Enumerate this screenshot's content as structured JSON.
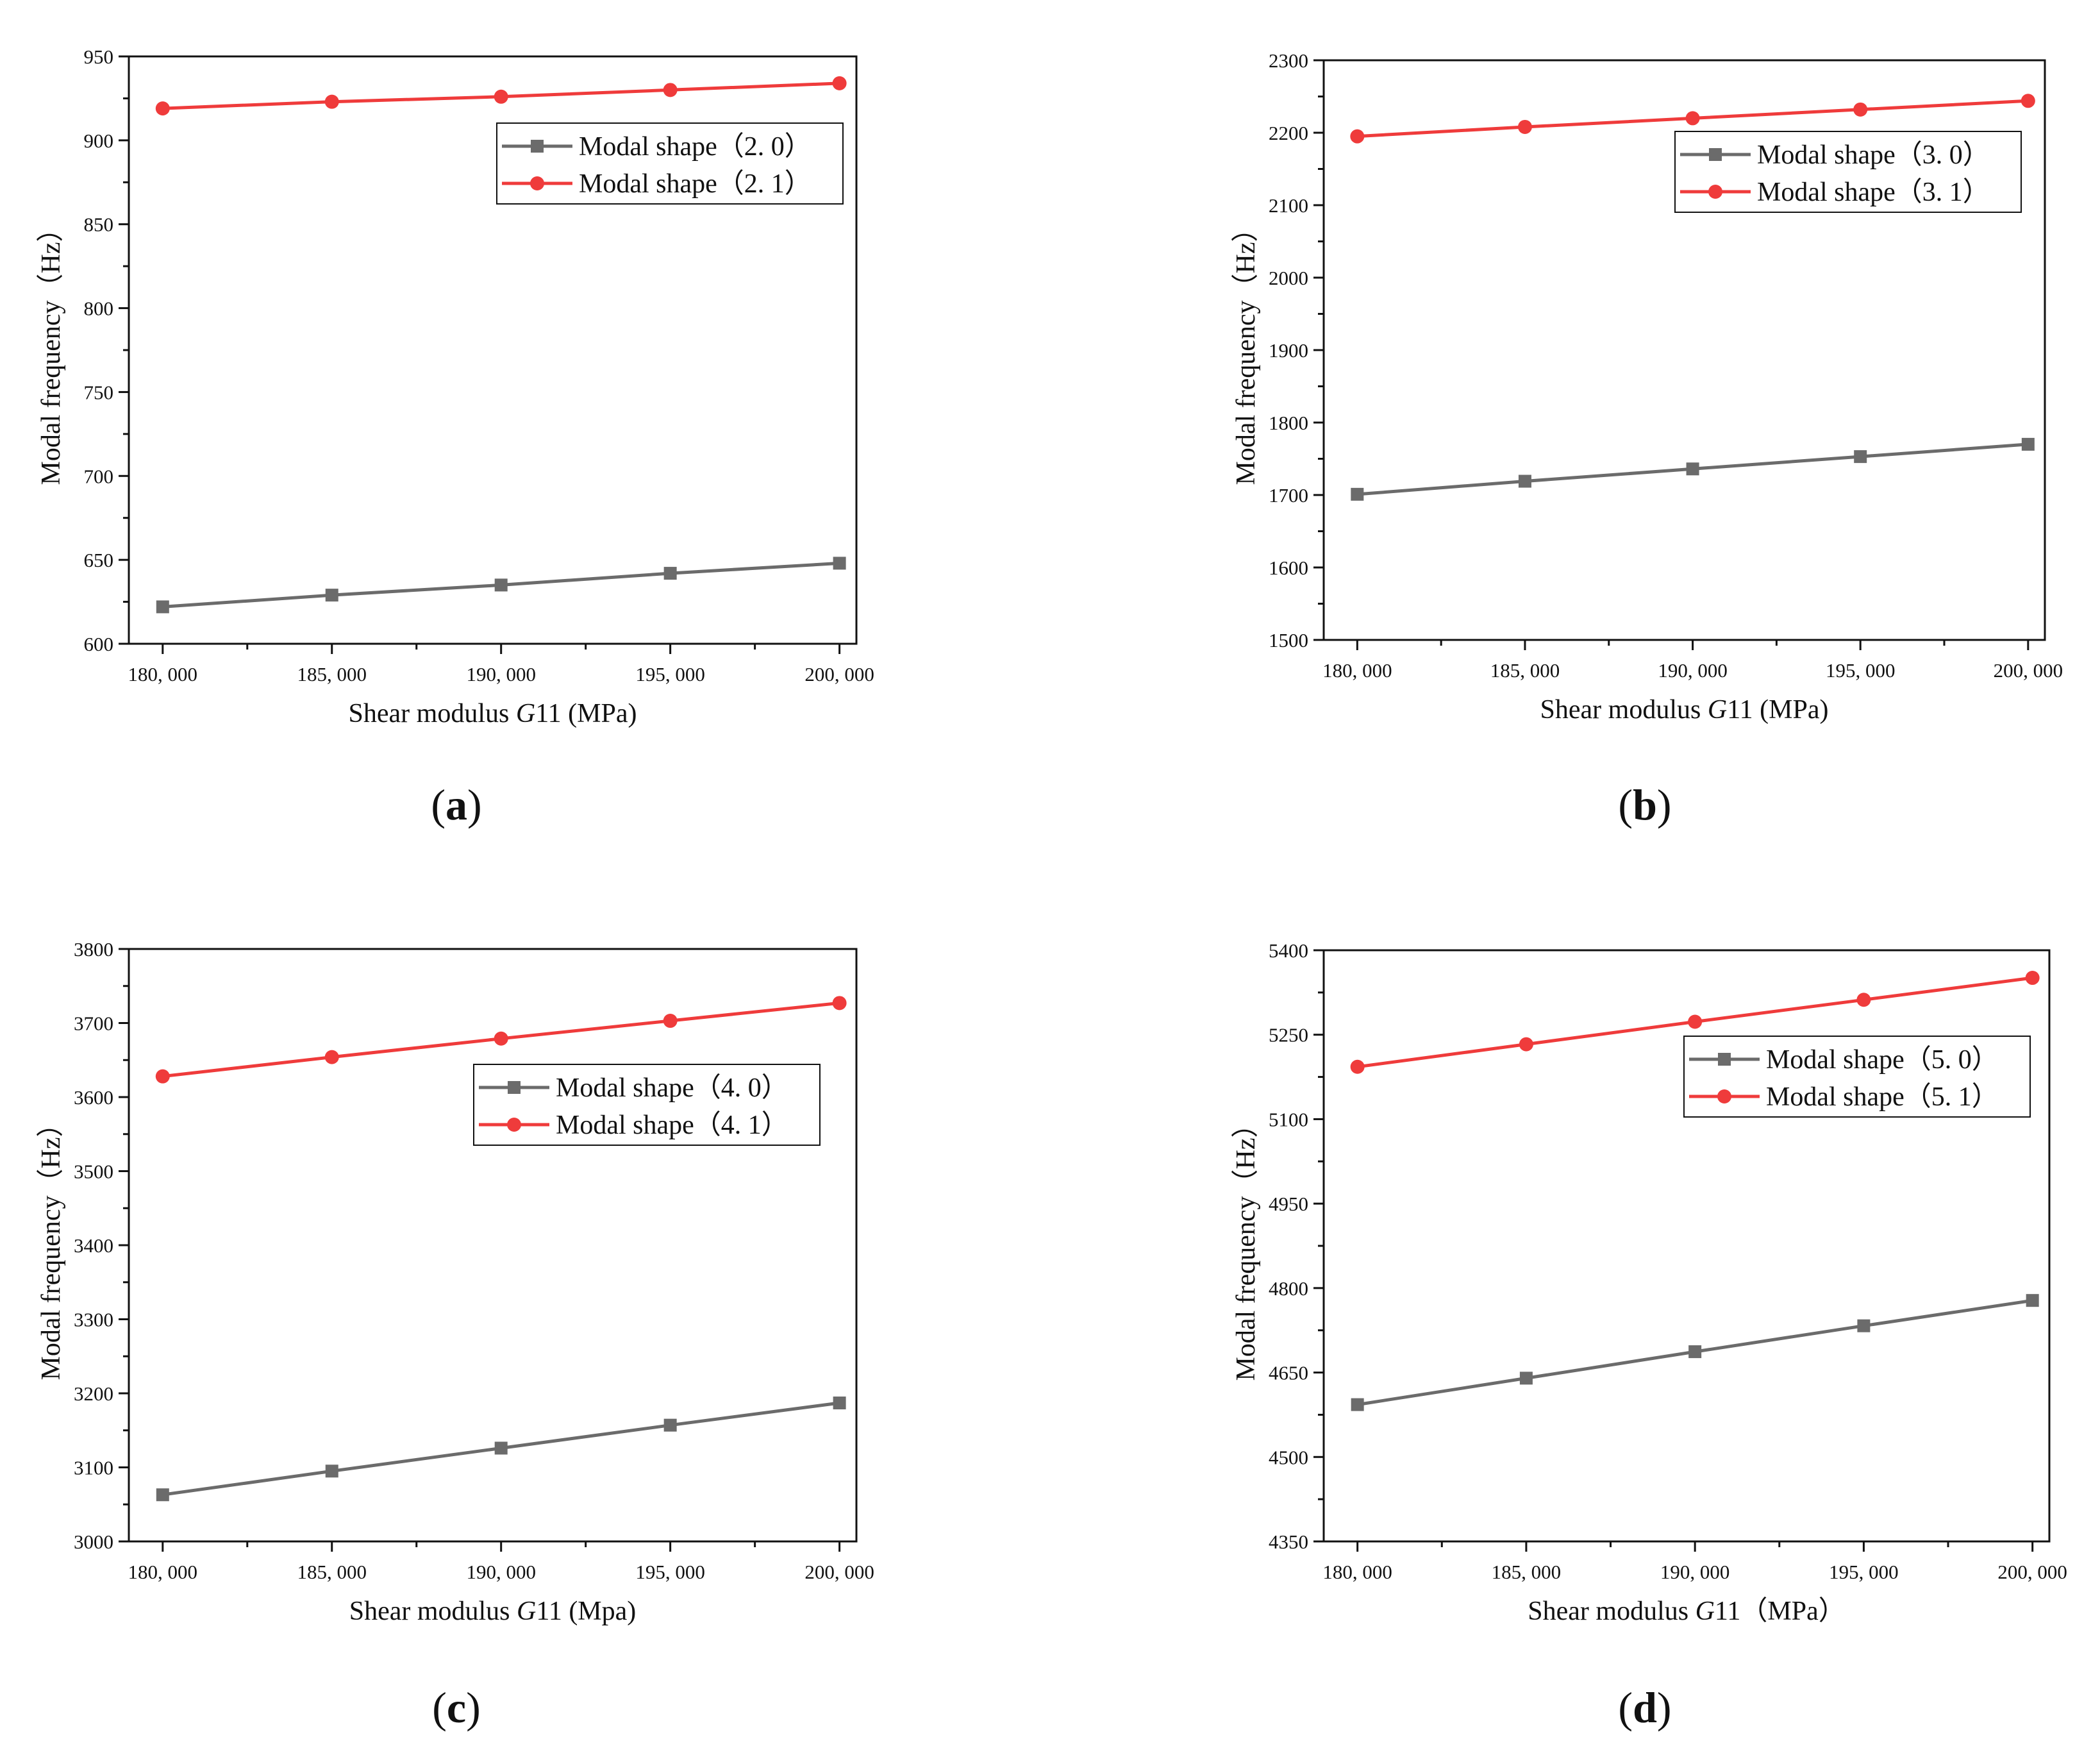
{
  "colors": {
    "series0": "#6b6b6b",
    "series1": "#ef3b3b",
    "axis": "#111111"
  },
  "chart_data": [
    {
      "type": "line",
      "caption": "a",
      "x": [
        180000,
        185000,
        190000,
        195000,
        200000
      ],
      "x_tick_labels": [
        "180, 000",
        "185, 000",
        "190, 000",
        "195, 000",
        "200, 000"
      ],
      "xlim": [
        179000,
        200500
      ],
      "ylim": [
        600,
        950
      ],
      "y_ticks": [
        600,
        650,
        700,
        750,
        800,
        850,
        900,
        950
      ],
      "y_minor_step": 25,
      "xlabel_parts": [
        "Shear modulus ",
        "G",
        "11 (MPa)"
      ],
      "ylabel": "Modal frequency（Hz）",
      "legend_position": "upper-right",
      "series": [
        {
          "name": "Modal shape（2. 0）",
          "marker": "square",
          "values": [
            622,
            629,
            635,
            642,
            648
          ]
        },
        {
          "name": "Modal shape（2. 1）",
          "marker": "circle",
          "values": [
            919,
            923,
            926,
            930,
            934
          ]
        }
      ]
    },
    {
      "type": "line",
      "caption": "b",
      "x": [
        180000,
        185000,
        190000,
        195000,
        200000
      ],
      "x_tick_labels": [
        "180, 000",
        "185, 000",
        "190, 000",
        "195, 000",
        "200, 000"
      ],
      "xlim": [
        179000,
        200500
      ],
      "ylim": [
        1500,
        2300
      ],
      "y_ticks": [
        1500,
        1600,
        1700,
        1800,
        1900,
        2000,
        2100,
        2200,
        2300
      ],
      "y_minor_step": 50,
      "xlabel_parts": [
        "Shear modulus ",
        "G",
        "11 (MPa)"
      ],
      "ylabel": "Modal frequency（Hz）",
      "legend_position": "upper-right",
      "series": [
        {
          "name": "Modal shape（3. 0）",
          "marker": "square",
          "values": [
            1701,
            1719,
            1736,
            1753,
            1770
          ]
        },
        {
          "name": "Modal shape（3. 1）",
          "marker": "circle",
          "values": [
            2195,
            2208,
            2220,
            2232,
            2244
          ]
        }
      ]
    },
    {
      "type": "line",
      "caption": "c",
      "x": [
        180000,
        185000,
        190000,
        195000,
        200000
      ],
      "x_tick_labels": [
        "180, 000",
        "185, 000",
        "190, 000",
        "195, 000",
        "200, 000"
      ],
      "xlim": [
        179000,
        200500
      ],
      "ylim": [
        3000,
        3800
      ],
      "y_ticks": [
        3000,
        3100,
        3200,
        3300,
        3400,
        3500,
        3600,
        3700,
        3800
      ],
      "y_minor_step": 50,
      "xlabel_parts": [
        "Shear modulus ",
        "G",
        "11 (Mpa)"
      ],
      "ylabel": "Modal frequency（Hz）",
      "legend_position": "upper-right",
      "series": [
        {
          "name": "Modal shape（4. 0）",
          "marker": "square",
          "values": [
            3063,
            3095,
            3126,
            3157,
            3187
          ]
        },
        {
          "name": "Modal shape（4. 1）",
          "marker": "circle",
          "values": [
            3628,
            3654,
            3679,
            3703,
            3727
          ]
        }
      ]
    },
    {
      "type": "line",
      "caption": "d",
      "x": [
        180000,
        185000,
        190000,
        195000,
        200000
      ],
      "x_tick_labels": [
        "180, 000",
        "185, 000",
        "190, 000",
        "195, 000",
        "200, 000"
      ],
      "xlim": [
        179000,
        200500
      ],
      "ylim": [
        4350,
        5400
      ],
      "y_ticks": [
        4350,
        4500,
        4650,
        4800,
        4950,
        5100,
        5250,
        5400
      ],
      "y_minor_step": 75,
      "xlabel_parts": [
        "Shear modulus ",
        "G",
        "11（MPa）"
      ],
      "ylabel": "Modal frequency（Hz）",
      "legend_position": "upper-right",
      "series": [
        {
          "name": "Modal shape（5. 0）",
          "marker": "square",
          "values": [
            4593,
            4640,
            4687,
            4733,
            4778
          ]
        },
        {
          "name": "Modal shape（5. 1）",
          "marker": "circle",
          "values": [
            5193,
            5233,
            5273,
            5312,
            5351
          ]
        }
      ]
    }
  ]
}
